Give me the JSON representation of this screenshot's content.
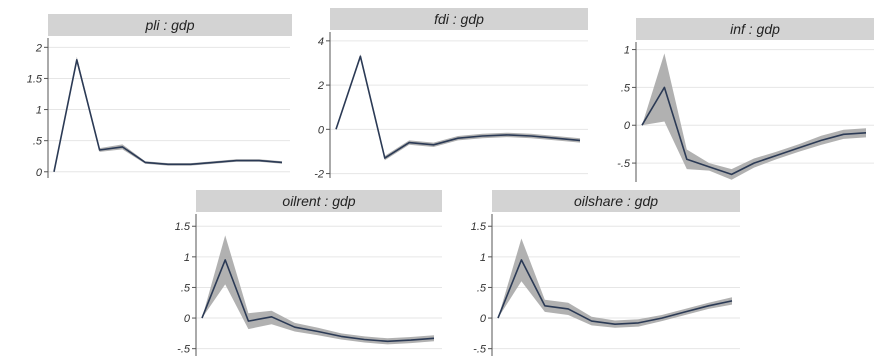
{
  "colors": {
    "strip": "#d3d3d3",
    "band": "#a8a8a8",
    "line": "#2b3a55",
    "grid": "#e6e6e6",
    "axis": "#555555"
  },
  "chart_data": [
    {
      "type": "line",
      "title": "pli : gdp",
      "x": [
        0,
        1,
        2,
        3,
        4,
        5,
        6,
        7,
        8,
        9,
        10
      ],
      "ylim": [
        -0.1,
        2.15
      ],
      "yticks": [
        0,
        0.5,
        1,
        1.5,
        2
      ],
      "ytick_labels": [
        "0",
        ".5",
        "1",
        "1.5",
        "2"
      ],
      "series": [
        {
          "values": [
            0,
            1.8,
            0.35,
            0.4,
            0.15,
            0.12,
            0.12,
            0.15,
            0.18,
            0.18,
            0.15
          ]
        }
      ],
      "band_lower": [
        0,
        1.75,
        0.32,
        0.36,
        0.13,
        0.1,
        0.1,
        0.13,
        0.16,
        0.16,
        0.13
      ],
      "band_upper": [
        0,
        1.85,
        0.38,
        0.44,
        0.17,
        0.14,
        0.14,
        0.17,
        0.2,
        0.2,
        0.17
      ],
      "grid": true
    },
    {
      "type": "line",
      "title": "fdi : gdp",
      "x": [
        0,
        1,
        2,
        3,
        4,
        5,
        6,
        7,
        8,
        9,
        10
      ],
      "ylim": [
        -2.2,
        4.4
      ],
      "yticks": [
        -2,
        0,
        2,
        4
      ],
      "ytick_labels": [
        "-2",
        "0",
        "2",
        "4"
      ],
      "series": [
        {
          "values": [
            0,
            3.3,
            -1.3,
            -0.6,
            -0.7,
            -0.4,
            -0.3,
            -0.25,
            -0.3,
            -0.4,
            -0.5
          ]
        }
      ],
      "band_lower": [
        0,
        3.2,
        -1.4,
        -0.7,
        -0.8,
        -0.5,
        -0.4,
        -0.35,
        -0.4,
        -0.5,
        -0.6
      ],
      "band_upper": [
        0,
        3.4,
        -1.2,
        -0.5,
        -0.6,
        -0.3,
        -0.2,
        -0.15,
        -0.2,
        -0.3,
        -0.4
      ],
      "grid": true
    },
    {
      "type": "line",
      "title": "inf : gdp",
      "x": [
        0,
        1,
        2,
        3,
        4,
        5,
        6,
        7,
        8,
        9,
        10
      ],
      "ylim": [
        -0.75,
        1.1
      ],
      "yticks": [
        -0.5,
        0,
        0.5,
        1
      ],
      "ytick_labels": [
        "-.5",
        "0",
        ".5",
        "1"
      ],
      "series": [
        {
          "values": [
            0,
            0.5,
            -0.45,
            -0.55,
            -0.65,
            -0.5,
            -0.4,
            -0.3,
            -0.2,
            -0.12,
            -0.1
          ]
        }
      ],
      "band_lower": [
        0,
        0.05,
        -0.58,
        -0.6,
        -0.72,
        -0.56,
        -0.45,
        -0.35,
        -0.26,
        -0.18,
        -0.16
      ],
      "band_upper": [
        0,
        0.95,
        -0.32,
        -0.5,
        -0.58,
        -0.44,
        -0.35,
        -0.25,
        -0.14,
        -0.06,
        -0.04
      ],
      "grid": true
    },
    {
      "type": "line",
      "title": "oilrent : gdp",
      "x": [
        0,
        1,
        2,
        3,
        4,
        5,
        6,
        7,
        8,
        9,
        10
      ],
      "ylim": [
        -0.62,
        1.7
      ],
      "yticks": [
        -0.5,
        0,
        0.5,
        1,
        1.5
      ],
      "ytick_labels": [
        "-.5",
        "0",
        ".5",
        "1",
        "1.5"
      ],
      "series": [
        {
          "values": [
            0,
            0.95,
            -0.05,
            0.02,
            -0.15,
            -0.22,
            -0.3,
            -0.35,
            -0.38,
            -0.36,
            -0.33
          ]
        }
      ],
      "band_lower": [
        0,
        0.55,
        -0.18,
        -0.1,
        -0.22,
        -0.28,
        -0.35,
        -0.4,
        -0.43,
        -0.41,
        -0.38
      ],
      "band_upper": [
        0,
        1.35,
        0.08,
        0.12,
        -0.08,
        -0.16,
        -0.25,
        -0.3,
        -0.33,
        -0.31,
        -0.28
      ],
      "grid": true
    },
    {
      "type": "line",
      "title": "oilshare : gdp",
      "x": [
        0,
        1,
        2,
        3,
        4,
        5,
        6,
        7,
        8,
        9,
        10
      ],
      "ylim": [
        -0.62,
        1.7
      ],
      "yticks": [
        -0.5,
        0,
        0.5,
        1,
        1.5
      ],
      "ytick_labels": [
        "-.5",
        "0",
        ".5",
        "1",
        "1.5"
      ],
      "series": [
        {
          "values": [
            0,
            0.95,
            0.2,
            0.15,
            -0.05,
            -0.1,
            -0.08,
            0,
            0.1,
            0.2,
            0.28
          ]
        }
      ],
      "band_lower": [
        0,
        0.6,
        0.1,
        0.05,
        -0.12,
        -0.16,
        -0.14,
        -0.05,
        0.05,
        0.15,
        0.22
      ],
      "band_upper": [
        0,
        1.3,
        0.3,
        0.25,
        0.02,
        -0.04,
        -0.02,
        0.05,
        0.15,
        0.25,
        0.34
      ],
      "grid": true
    }
  ]
}
